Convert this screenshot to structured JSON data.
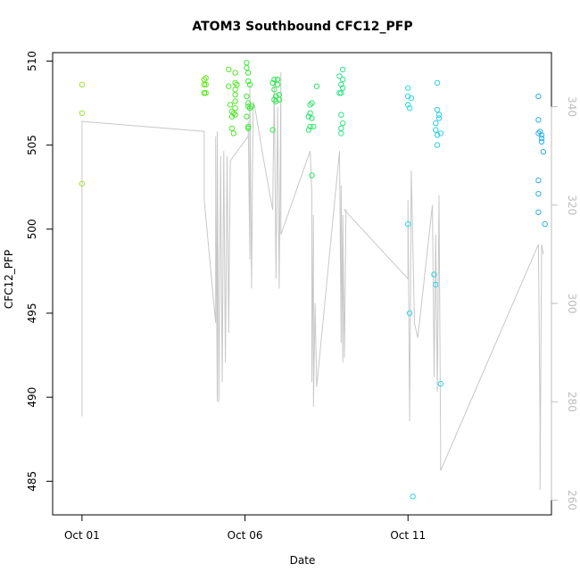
{
  "chart_data": {
    "type": "scatter",
    "title": "ATOM3 Southbound CFC12_PFP",
    "xlabel": "Date",
    "ylabel": "CFC12_PFP",
    "x_unit": "days since Oct 01",
    "xlim": [
      -0.9,
      14.4
    ],
    "ylim": [
      483.0,
      510.5
    ],
    "y2lim": [
      257.0,
      351.0
    ],
    "x_ticks": [
      {
        "value": 0,
        "label": "Oct 01"
      },
      {
        "value": 5,
        "label": "Oct 06"
      },
      {
        "value": 10,
        "label": "Oct 11"
      }
    ],
    "y_ticks": [
      485,
      490,
      495,
      500,
      505,
      510
    ],
    "y2_ticks": [
      260,
      280,
      300,
      320,
      340
    ],
    "grid": false,
    "legend": "none",
    "colors": {
      "line": "#c8c8c8",
      "axis": "#000000",
      "right_axis": "#bdbdbd"
    },
    "points": [
      {
        "x": 0.0,
        "y": 508.6,
        "c": "#9ee631"
      },
      {
        "x": 0.0,
        "y": 506.9,
        "c": "#9ee631"
      },
      {
        "x": 0.0,
        "y": 502.7,
        "c": "#9ee631"
      },
      {
        "x": 3.75,
        "y": 508.9,
        "c": "#66e81f"
      },
      {
        "x": 3.75,
        "y": 508.6,
        "c": "#66e81f"
      },
      {
        "x": 3.75,
        "y": 508.1,
        "c": "#66e81f"
      },
      {
        "x": 3.8,
        "y": 508.1,
        "c": "#66e81f"
      },
      {
        "x": 3.8,
        "y": 509.0,
        "c": "#66e81f"
      },
      {
        "x": 3.8,
        "y": 508.6,
        "c": "#66e81f"
      },
      {
        "x": 3.75,
        "y": 508.1,
        "c": "#55e62b"
      },
      {
        "x": 4.5,
        "y": 509.5,
        "c": "#55e62b"
      },
      {
        "x": 4.5,
        "y": 508.5,
        "c": "#55e62b"
      },
      {
        "x": 4.55,
        "y": 507.4,
        "c": "#55e62b"
      },
      {
        "x": 4.6,
        "y": 507.0,
        "c": "#55e62b"
      },
      {
        "x": 4.6,
        "y": 506.0,
        "c": "#55e62b"
      },
      {
        "x": 4.65,
        "y": 505.7,
        "c": "#55e62b"
      },
      {
        "x": 4.7,
        "y": 509.3,
        "c": "#55e62b"
      },
      {
        "x": 4.7,
        "y": 508.7,
        "c": "#55e62b"
      },
      {
        "x": 4.7,
        "y": 508.3,
        "c": "#55e62b"
      },
      {
        "x": 4.7,
        "y": 508.0,
        "c": "#55e62b"
      },
      {
        "x": 4.7,
        "y": 507.6,
        "c": "#55e62b"
      },
      {
        "x": 4.7,
        "y": 507.2,
        "c": "#55e62b"
      },
      {
        "x": 4.7,
        "y": 506.8,
        "c": "#55e62b"
      },
      {
        "x": 4.75,
        "y": 508.6,
        "c": "#55e62b"
      },
      {
        "x": 4.6,
        "y": 506.7,
        "c": "#55e62b"
      },
      {
        "x": 4.65,
        "y": 506.9,
        "c": "#55e62b"
      },
      {
        "x": 5.05,
        "y": 509.9,
        "c": "#3fe838"
      },
      {
        "x": 5.05,
        "y": 509.6,
        "c": "#3fe838"
      },
      {
        "x": 5.1,
        "y": 509.3,
        "c": "#3fe838"
      },
      {
        "x": 5.1,
        "y": 508.8,
        "c": "#3fe838"
      },
      {
        "x": 5.15,
        "y": 508.6,
        "c": "#3fe838"
      },
      {
        "x": 5.05,
        "y": 507.9,
        "c": "#3fe838"
      },
      {
        "x": 5.1,
        "y": 507.5,
        "c": "#3fe838"
      },
      {
        "x": 5.1,
        "y": 507.3,
        "c": "#3fe838"
      },
      {
        "x": 5.15,
        "y": 507.2,
        "c": "#3fe838"
      },
      {
        "x": 5.2,
        "y": 507.3,
        "c": "#3fe838"
      },
      {
        "x": 5.05,
        "y": 506.7,
        "c": "#3fe838"
      },
      {
        "x": 5.1,
        "y": 506.1,
        "c": "#3fe838"
      },
      {
        "x": 5.1,
        "y": 506.0,
        "c": "#3fe838"
      },
      {
        "x": 5.85,
        "y": 508.7,
        "c": "#2fe84b"
      },
      {
        "x": 5.9,
        "y": 508.9,
        "c": "#2fe84b"
      },
      {
        "x": 5.9,
        "y": 508.3,
        "c": "#2fe84b"
      },
      {
        "x": 5.95,
        "y": 507.9,
        "c": "#2fe84b"
      },
      {
        "x": 5.95,
        "y": 507.6,
        "c": "#2fe84b"
      },
      {
        "x": 5.9,
        "y": 507.7,
        "c": "#2fe84b"
      },
      {
        "x": 6.0,
        "y": 508.6,
        "c": "#2fe84b"
      },
      {
        "x": 6.0,
        "y": 508.9,
        "c": "#2fe84b"
      },
      {
        "x": 6.05,
        "y": 508.0,
        "c": "#2fe84b"
      },
      {
        "x": 6.05,
        "y": 507.7,
        "c": "#2fe84b"
      },
      {
        "x": 5.85,
        "y": 505.9,
        "c": "#2fe84b"
      },
      {
        "x": 7.0,
        "y": 507.4,
        "c": "#2fe46c"
      },
      {
        "x": 7.05,
        "y": 507.5,
        "c": "#2fe46c"
      },
      {
        "x": 7.0,
        "y": 506.9,
        "c": "#2fe46c"
      },
      {
        "x": 7.05,
        "y": 506.6,
        "c": "#2fe46c"
      },
      {
        "x": 6.95,
        "y": 506.7,
        "c": "#2fe46c"
      },
      {
        "x": 7.0,
        "y": 506.1,
        "c": "#2fe46c"
      },
      {
        "x": 6.95,
        "y": 505.9,
        "c": "#2fe46c"
      },
      {
        "x": 7.1,
        "y": 506.1,
        "c": "#2fe46c"
      },
      {
        "x": 7.2,
        "y": 508.5,
        "c": "#2fe46c"
      },
      {
        "x": 7.05,
        "y": 503.2,
        "c": "#2fe46c"
      },
      {
        "x": 7.9,
        "y": 509.1,
        "c": "#2fe48a"
      },
      {
        "x": 8.0,
        "y": 509.5,
        "c": "#2fe48a"
      },
      {
        "x": 8.0,
        "y": 508.9,
        "c": "#2fe48a"
      },
      {
        "x": 7.95,
        "y": 508.6,
        "c": "#2fe48a"
      },
      {
        "x": 8.0,
        "y": 508.4,
        "c": "#2fe48a"
      },
      {
        "x": 7.95,
        "y": 508.1,
        "c": "#2fe48a"
      },
      {
        "x": 7.9,
        "y": 508.1,
        "c": "#2fe48a"
      },
      {
        "x": 7.95,
        "y": 506.8,
        "c": "#2fe48a"
      },
      {
        "x": 8.0,
        "y": 506.3,
        "c": "#2fe48a"
      },
      {
        "x": 7.95,
        "y": 506.0,
        "c": "#2fe48a"
      },
      {
        "x": 7.95,
        "y": 505.7,
        "c": "#2fe48a"
      },
      {
        "x": 10.0,
        "y": 508.4,
        "c": "#2fd8e6"
      },
      {
        "x": 10.0,
        "y": 507.9,
        "c": "#2fd8e6"
      },
      {
        "x": 10.1,
        "y": 507.8,
        "c": "#2fd8e6"
      },
      {
        "x": 10.0,
        "y": 507.4,
        "c": "#2fd8e6"
      },
      {
        "x": 10.05,
        "y": 507.2,
        "c": "#2fd8e6"
      },
      {
        "x": 10.0,
        "y": 500.3,
        "c": "#2fd8e6"
      },
      {
        "x": 10.05,
        "y": 495.0,
        "c": "#2fd8e6"
      },
      {
        "x": 10.15,
        "y": 484.1,
        "c": "#2fd8e6"
      },
      {
        "x": 10.9,
        "y": 508.7,
        "c": "#2fcfe8"
      },
      {
        "x": 10.9,
        "y": 507.1,
        "c": "#2fcfe8"
      },
      {
        "x": 10.95,
        "y": 506.8,
        "c": "#2fcfe8"
      },
      {
        "x": 10.85,
        "y": 506.3,
        "c": "#2fcfe8"
      },
      {
        "x": 10.95,
        "y": 506.6,
        "c": "#2fcfe8"
      },
      {
        "x": 10.85,
        "y": 505.9,
        "c": "#2fcfe8"
      },
      {
        "x": 10.9,
        "y": 505.6,
        "c": "#2fcfe8"
      },
      {
        "x": 11.0,
        "y": 505.7,
        "c": "#2fcfe8"
      },
      {
        "x": 10.9,
        "y": 505.0,
        "c": "#2fcfe8"
      },
      {
        "x": 10.8,
        "y": 497.3,
        "c": "#2fcfe8"
      },
      {
        "x": 10.85,
        "y": 496.7,
        "c": "#2fcfe8"
      },
      {
        "x": 11.0,
        "y": 490.8,
        "c": "#2fcfe8"
      },
      {
        "x": 14.0,
        "y": 507.9,
        "c": "#2fb0e8"
      },
      {
        "x": 14.0,
        "y": 506.5,
        "c": "#2fb0e8"
      },
      {
        "x": 14.05,
        "y": 505.8,
        "c": "#2fb0e8"
      },
      {
        "x": 14.1,
        "y": 505.6,
        "c": "#2fb0e8"
      },
      {
        "x": 14.0,
        "y": 505.7,
        "c": "#2fb0e8"
      },
      {
        "x": 14.1,
        "y": 505.4,
        "c": "#2fb0e8"
      },
      {
        "x": 14.1,
        "y": 505.2,
        "c": "#2fb0e8"
      },
      {
        "x": 14.15,
        "y": 504.6,
        "c": "#2fb0e8"
      },
      {
        "x": 14.0,
        "y": 502.9,
        "c": "#2fb0e8"
      },
      {
        "x": 14.0,
        "y": 502.1,
        "c": "#2fb0e8"
      },
      {
        "x": 14.0,
        "y": 501.0,
        "c": "#2fb0e8"
      },
      {
        "x": 14.2,
        "y": 500.3,
        "c": "#2fb0e8"
      }
    ],
    "line": [
      [
        0.0,
        277
      ],
      [
        0.0,
        337
      ],
      [
        3.75,
        335
      ],
      [
        3.75,
        321
      ],
      [
        4.1,
        296
      ],
      [
        4.1,
        334
      ],
      [
        4.15,
        280
      ],
      [
        4.15,
        335
      ],
      [
        4.2,
        280
      ],
      [
        4.25,
        330
      ],
      [
        4.3,
        284
      ],
      [
        4.35,
        331
      ],
      [
        4.4,
        288
      ],
      [
        4.45,
        330
      ],
      [
        4.5,
        294
      ],
      [
        4.55,
        329
      ],
      [
        5.1,
        334
      ],
      [
        5.1,
        337
      ],
      [
        5.15,
        309
      ],
      [
        5.15,
        345
      ],
      [
        5.2,
        303
      ],
      [
        5.25,
        341
      ],
      [
        5.3,
        340
      ],
      [
        5.55,
        330
      ],
      [
        5.85,
        319
      ],
      [
        5.9,
        345
      ],
      [
        5.95,
        305
      ],
      [
        6.0,
        340
      ],
      [
        6.05,
        303
      ],
      [
        6.1,
        347
      ],
      [
        6.1,
        314
      ],
      [
        7.0,
        331
      ],
      [
        7.05,
        322
      ],
      [
        7.05,
        284
      ],
      [
        7.1,
        318
      ],
      [
        7.1,
        279
      ],
      [
        7.15,
        300
      ],
      [
        7.2,
        283
      ],
      [
        7.9,
        331
      ],
      [
        7.95,
        292
      ],
      [
        7.95,
        324
      ],
      [
        8.0,
        288
      ],
      [
        8.0,
        318
      ],
      [
        8.05,
        289
      ],
      [
        8.1,
        319
      ],
      [
        8.05,
        319
      ],
      [
        10.0,
        305
      ],
      [
        10.0,
        321
      ],
      [
        10.05,
        276
      ],
      [
        10.1,
        327
      ],
      [
        10.15,
        312
      ],
      [
        10.2,
        296
      ],
      [
        10.3,
        293
      ],
      [
        10.75,
        320
      ],
      [
        10.8,
        285
      ],
      [
        10.85,
        314
      ],
      [
        10.9,
        282
      ],
      [
        10.95,
        322
      ],
      [
        11.0,
        271
      ],
      [
        11.0,
        266
      ],
      [
        14.0,
        312
      ],
      [
        14.05,
        276
      ],
      [
        14.05,
        262
      ],
      [
        14.1,
        312
      ],
      [
        14.15,
        310
      ]
    ]
  }
}
